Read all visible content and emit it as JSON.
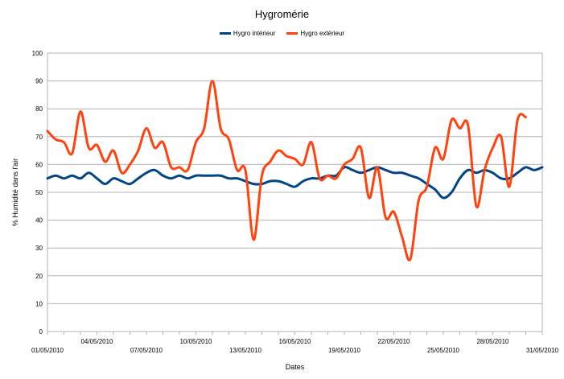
{
  "chart_data": {
    "type": "line",
    "title": "Hygromérie",
    "xlabel": "Dates",
    "ylabel": "% Humidité dans l'air",
    "ylim": [
      0,
      100
    ],
    "yticks": [
      0,
      10,
      20,
      30,
      40,
      50,
      60,
      70,
      80,
      90,
      100
    ],
    "grid": true,
    "legend": "top",
    "x_tick_labels": [
      "01/05/2010",
      "04/05/2010",
      "07/05/2010",
      "10/05/2010",
      "13/05/2010",
      "16/05/2010",
      "19/05/2010",
      "22/05/2010",
      "25/05/2010",
      "28/05/2010",
      "31/05/2010"
    ],
    "series": [
      {
        "name": "Hygro intérieur",
        "color": "#004586",
        "x": [
          0,
          0.5,
          1,
          1.5,
          2,
          2.5,
          3,
          3.5,
          4,
          4.5,
          5,
          5.5,
          6,
          6.5,
          7,
          7.5,
          8,
          8.5,
          9,
          9.5,
          10,
          10.5,
          11,
          11.5,
          12,
          12.5,
          13,
          13.5,
          14,
          14.5,
          15,
          15.5,
          16,
          16.5,
          17,
          17.5,
          18,
          18.5,
          19,
          19.5,
          20,
          20.5,
          21,
          21.5,
          22,
          22.5,
          23,
          23.5,
          24,
          24.5,
          25,
          25.5,
          26,
          26.5,
          27,
          27.5,
          28,
          28.5,
          29,
          29.5,
          30
        ],
        "values": [
          55,
          56,
          55,
          56,
          55,
          57,
          55,
          53,
          55,
          54,
          53,
          55,
          57,
          58,
          56,
          55,
          56,
          55,
          56,
          56,
          56,
          56,
          55,
          55,
          54,
          53,
          53,
          54,
          54,
          53,
          52,
          54,
          55,
          55,
          56,
          56,
          59,
          58,
          57,
          58,
          59,
          58,
          57,
          57,
          56,
          55,
          53,
          51,
          48,
          50,
          55,
          58,
          57,
          58,
          57,
          55,
          55,
          57,
          59,
          58,
          59
        ]
      },
      {
        "name": "Hygro extérieur",
        "color": "#ff420e",
        "x": [
          0,
          0.5,
          1,
          1.5,
          2,
          2.5,
          3,
          3.5,
          4,
          4.5,
          5,
          5.5,
          6,
          6.5,
          7,
          7.5,
          8,
          8.5,
          9,
          9.5,
          10,
          10.5,
          11,
          11.5,
          12,
          12.5,
          13,
          13.5,
          14,
          14.5,
          15,
          15.5,
          16,
          16.5,
          17,
          17.5,
          18,
          18.5,
          19,
          19.5,
          20,
          20.5,
          21,
          21.5,
          22,
          22.5,
          23,
          23.5,
          24,
          24.5,
          25,
          25.5,
          26,
          26.5,
          27,
          27.5,
          28,
          28.5,
          29,
          29.5,
          30
        ],
        "values": [
          72,
          69,
          68,
          64,
          79,
          66,
          67,
          61,
          65,
          57,
          60,
          65,
          73,
          66,
          68,
          59,
          59,
          58,
          68,
          73,
          90,
          73,
          69,
          58,
          58,
          33,
          56,
          61,
          65,
          63,
          62,
          60,
          68,
          55,
          56,
          55,
          60,
          62,
          66,
          48,
          59,
          41,
          43,
          34,
          26,
          47,
          52,
          66,
          62,
          76,
          73,
          74,
          45,
          58,
          66,
          70,
          52,
          76,
          77,
          null,
          null
        ]
      }
    ]
  }
}
